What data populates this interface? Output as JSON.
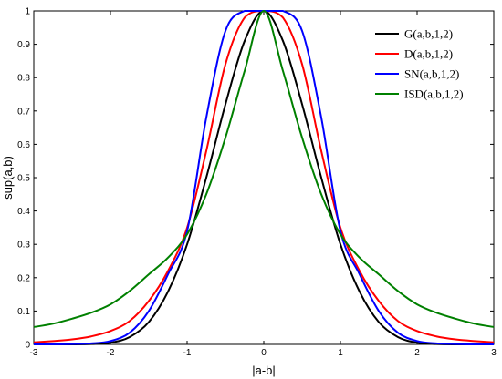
{
  "chart_data": {
    "type": "line",
    "title": "",
    "xlabel": "|a-b|",
    "ylabel": "sup(a,b)",
    "xlim": [
      -3,
      3
    ],
    "ylim": [
      0,
      1
    ],
    "xticks": [
      "-3",
      "-2",
      "-1",
      "0",
      "1",
      "2",
      "3"
    ],
    "yticks": [
      "0",
      "0.1",
      "0.2",
      "0.3",
      "0.4",
      "0.5",
      "0.6",
      "0.7",
      "0.8",
      "0.9",
      "1"
    ],
    "grid": false,
    "legend_position": "top-right",
    "x": [
      -3,
      -2.75,
      -2.5,
      -2.25,
      -2,
      -1.75,
      -1.5,
      -1.25,
      -1,
      -0.75,
      -0.5,
      -0.25,
      0,
      0.25,
      0.5,
      0.75,
      1,
      1.25,
      1.5,
      1.75,
      2,
      2.25,
      2.5,
      2.75,
      3
    ],
    "series": [
      {
        "name": "G(a,b,1,2)",
        "color": "#000000",
        "values": [
          0.0,
          0.0,
          0.0,
          0.001,
          0.005,
          0.022,
          0.067,
          0.158,
          0.3,
          0.5,
          0.72,
          0.91,
          1.0,
          0.91,
          0.72,
          0.5,
          0.3,
          0.158,
          0.067,
          0.022,
          0.005,
          0.001,
          0.0,
          0.0,
          0.0
        ]
      },
      {
        "name": "D(a,b,1,2)",
        "color": "#ff0000",
        "values": [
          0.006,
          0.01,
          0.015,
          0.024,
          0.04,
          0.07,
          0.13,
          0.22,
          0.35,
          0.58,
          0.84,
          0.98,
          1.0,
          0.98,
          0.84,
          0.58,
          0.35,
          0.22,
          0.13,
          0.07,
          0.04,
          0.024,
          0.015,
          0.01,
          0.006
        ]
      },
      {
        "name": "SN(a,b,1,2)",
        "color": "#0000ff",
        "values": [
          0.0,
          0.0,
          0.001,
          0.003,
          0.01,
          0.035,
          0.1,
          0.21,
          0.34,
          0.68,
          0.94,
          1.0,
          1.0,
          1.0,
          0.94,
          0.68,
          0.34,
          0.21,
          0.1,
          0.035,
          0.01,
          0.003,
          0.001,
          0.0,
          0.0
        ]
      },
      {
        "name": "ISD(a,b,1,2)",
        "color": "#008000",
        "values": [
          0.052,
          0.062,
          0.077,
          0.095,
          0.12,
          0.16,
          0.21,
          0.26,
          0.33,
          0.45,
          0.62,
          0.82,
          1.0,
          0.82,
          0.62,
          0.45,
          0.33,
          0.26,
          0.21,
          0.16,
          0.12,
          0.095,
          0.077,
          0.062,
          0.052
        ]
      }
    ]
  }
}
